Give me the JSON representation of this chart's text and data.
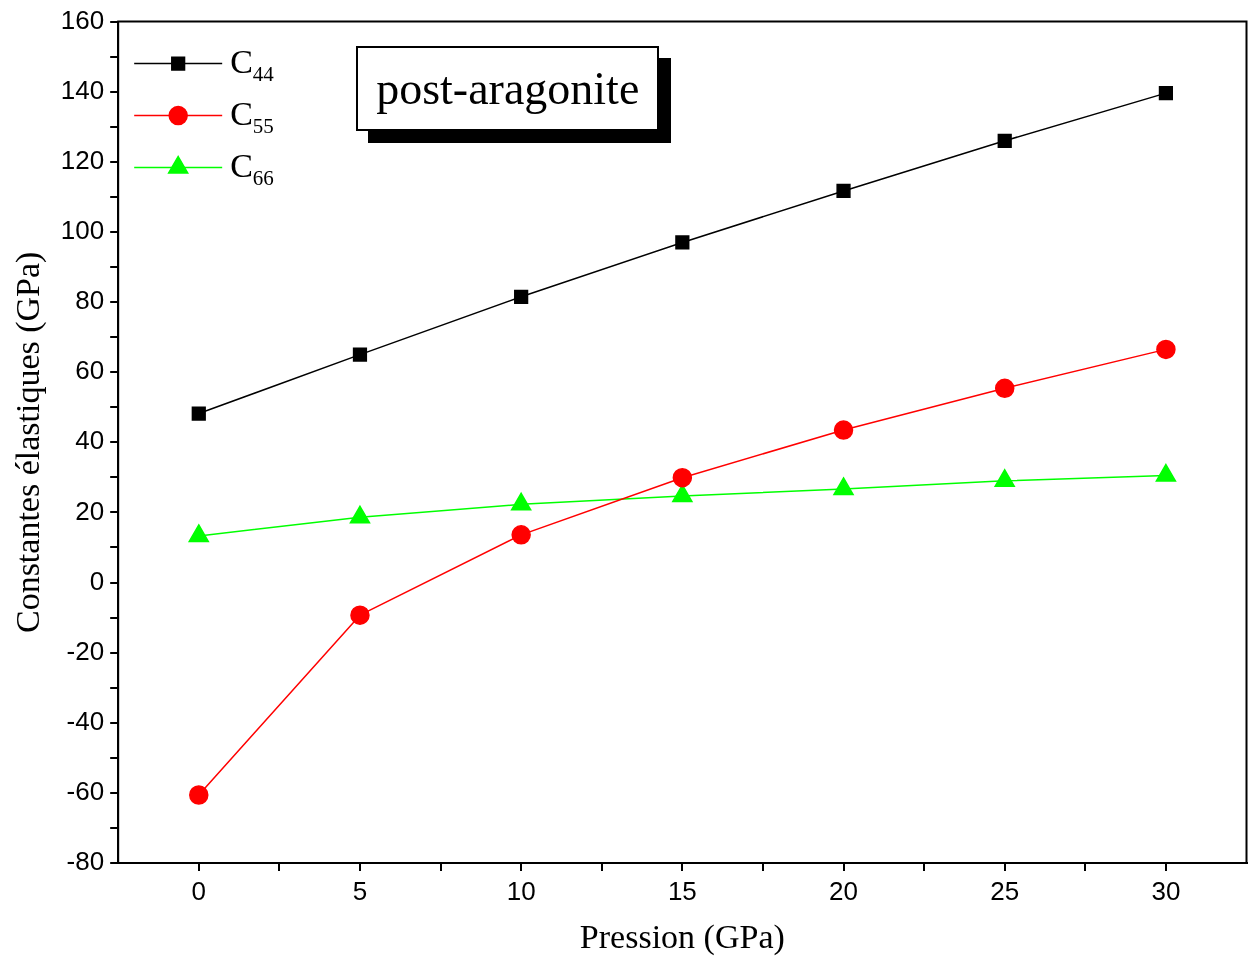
{
  "chart_data": {
    "type": "line",
    "title": "post-aragonite",
    "xlabel": "Pression (GPa)",
    "ylabel": "Constantes élastiques (GPa)",
    "x": [
      0,
      5,
      10,
      15,
      20,
      25,
      30
    ],
    "xlim": [
      -2.5,
      32.5
    ],
    "xticks": [
      0,
      {
        "value": 2.5,
        "label": null
      },
      5,
      {
        "value": 7.5,
        "label": null
      },
      10,
      {
        "value": 12.5,
        "label": null
      },
      15,
      {
        "value": 17.5,
        "label": null
      },
      20,
      {
        "value": 22.5,
        "label": null
      },
      25,
      {
        "value": 27.5,
        "label": null
      },
      30
    ],
    "ylim": [
      -80,
      160
    ],
    "yticks": [
      -80,
      {
        "value": -70,
        "label": null
      },
      -60,
      {
        "value": -50,
        "label": null
      },
      -40,
      {
        "value": -30,
        "label": null
      },
      -20,
      {
        "value": -10,
        "label": null
      },
      0,
      {
        "value": 10,
        "label": null
      },
      20,
      {
        "value": 30,
        "label": null
      },
      40,
      {
        "value": 50,
        "label": null
      },
      60,
      {
        "value": 70,
        "label": null
      },
      80,
      {
        "value": 90,
        "label": null
      },
      100,
      {
        "value": 110,
        "label": null
      },
      120,
      {
        "value": 130,
        "label": null
      },
      140,
      {
        "value": 150,
        "label": null
      },
      160
    ],
    "grid": false,
    "legend": "top left",
    "line_style": "solid",
    "series": [
      {
        "name": "C$_{44}$",
        "color": "#000000",
        "marker": "square",
        "values": [
          48.2,
          65,
          81.5,
          97,
          111.7,
          126,
          139.6
        ]
      },
      {
        "name": "C$_{55}$",
        "color": "#ff0000",
        "marker": "circle",
        "values": [
          -60.6,
          -9.3,
          13.6,
          29.9,
          43.5,
          55.4,
          66.5
        ]
      },
      {
        "name": "C$_{66}$",
        "color": "#00ff00",
        "marker": "triangle",
        "values": [
          13.3,
          18.6,
          22.3,
          24.7,
          26.7,
          29,
          30.5
        ]
      }
    ]
  }
}
